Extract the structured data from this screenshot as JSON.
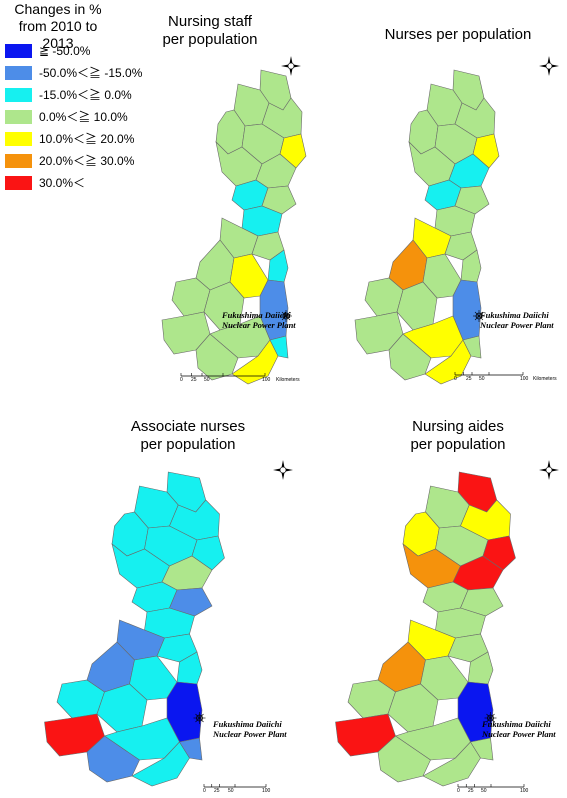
{
  "legend": {
    "title_line1": "Changes in %",
    "title_line2": "from 2010 to 2013",
    "items": [
      {
        "label": "≧ -50.0%",
        "color": "#0a16f0"
      },
      {
        "label": "-50.0%＜≧ -15.0%",
        "color": "#4d8de8"
      },
      {
        "label": "-15.0%＜≧ 0.0%",
        "color": "#16f0f0"
      },
      {
        "label": "0.0%＜≧ 10.0%",
        "color": "#aee68c"
      },
      {
        "label": "10.0%＜≧ 20.0%",
        "color": "#ffff00"
      },
      {
        "label": "20.0%＜≧ 30.0%",
        "color": "#f5920c"
      },
      {
        "label": "30.0%＜",
        "color": "#fa1414"
      }
    ]
  },
  "panels": [
    {
      "title_line1": "Nursing staff",
      "title_line2": "per population",
      "plant_line1": "Fukushima Daiichi",
      "plant_line2": "Nuclear Power Plant",
      "scale": {
        "t0": "0",
        "t1": "25",
        "t2": "50",
        "t3": "100",
        "unit": "Kilometers"
      },
      "north": {
        "n": "N",
        "s": "S",
        "e": "E",
        "w": "W"
      },
      "regions": [
        "#aee68c",
        "#aee68c",
        "#aee68c",
        "#aee68c",
        "#aee68c",
        "#aee68c",
        "#ffff00",
        "#aee68c",
        "#16f0f0",
        "#aee68c",
        "#16f0f0",
        "#aee68c",
        "#aee68c",
        "#16f0f0",
        "#aee68c",
        "#ffff00",
        "#aee68c",
        "#aee68c",
        "#aee68c",
        "#4d8de8",
        "#aee68c",
        "#aee68c",
        "#ffff00",
        "#16f0f0"
      ]
    },
    {
      "title_line1": "Nurses per population",
      "title_line2": "",
      "plant_line1": "Fukushima Daiichi",
      "plant_line2": "Nuclear Power Plant",
      "scale": {
        "t0": "0",
        "t1": "25",
        "t2": "50",
        "t3": "100",
        "unit": "Kilometers"
      },
      "north": {
        "n": "N",
        "s": "S",
        "e": "E",
        "w": "W"
      },
      "regions": [
        "#aee68c",
        "#aee68c",
        "#aee68c",
        "#aee68c",
        "#aee68c",
        "#aee68c",
        "#ffff00",
        "#16f0f0",
        "#16f0f0",
        "#aee68c",
        "#aee68c",
        "#ffff00",
        "#aee68c",
        "#aee68c",
        "#f5920c",
        "#aee68c",
        "#aee68c",
        "#aee68c",
        "#aee68c",
        "#4d8de8",
        "#ffff00",
        "#aee68c",
        "#ffff00",
        "#aee68c"
      ]
    },
    {
      "title_line1": "Associate nurses",
      "title_line2": "per population",
      "plant_line1": "Fukushima Daiichi",
      "plant_line2": "Nuclear Power Plant",
      "scale": {
        "t0": "0",
        "t1": "25",
        "t2": "50",
        "t3": "100",
        "unit": "Kilometers"
      },
      "north": {
        "n": "N",
        "s": "S",
        "e": "E",
        "w": "W"
      },
      "regions": [
        "#16f0f0",
        "#16f0f0",
        "#16f0f0",
        "#16f0f0",
        "#16f0f0",
        "#16f0f0",
        "#16f0f0",
        "#aee68c",
        "#16f0f0",
        "#4d8de8",
        "#16f0f0",
        "#4d8de8",
        "#16f0f0",
        "#16f0f0",
        "#4d8de8",
        "#16f0f0",
        "#16f0f0",
        "#fa1414",
        "#16f0f0",
        "#0a16f0",
        "#16f0f0",
        "#4d8de8",
        "#16f0f0",
        "#4d8de8"
      ]
    },
    {
      "title_line1": "Nursing aides",
      "title_line2": "per population",
      "plant_line1": "Fukushima Daiichi",
      "plant_line2": "Nuclear Power Plant",
      "scale": {
        "t0": "0",
        "t1": "25",
        "t2": "50",
        "t3": "100",
        "unit": "Kilometers"
      },
      "north": {
        "n": "N",
        "s": "S",
        "e": "E",
        "w": "W"
      },
      "regions": [
        "#fa1414",
        "#aee68c",
        "#ffff00",
        "#ffff00",
        "#aee68c",
        "#f5920c",
        "#fa1414",
        "#fa1414",
        "#aee68c",
        "#aee68c",
        "#aee68c",
        "#ffff00",
        "#aee68c",
        "#aee68c",
        "#f5920c",
        "#aee68c",
        "#aee68c",
        "#fa1414",
        "#aee68c",
        "#0a16f0",
        "#aee68c",
        "#aee68c",
        "#aee68c",
        "#aee68c"
      ]
    }
  ]
}
